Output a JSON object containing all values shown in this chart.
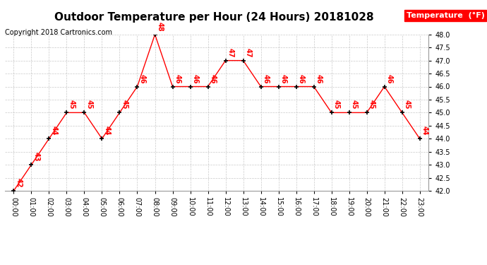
{
  "title": "Outdoor Temperature per Hour (24 Hours) 20181028",
  "copyright": "Copyright 2018 Cartronics.com",
  "legend_label": "Temperature  (°F)",
  "hours": [
    "00:00",
    "01:00",
    "02:00",
    "03:00",
    "04:00",
    "05:00",
    "06:00",
    "07:00",
    "08:00",
    "09:00",
    "10:00",
    "11:00",
    "12:00",
    "13:00",
    "14:00",
    "15:00",
    "16:00",
    "17:00",
    "18:00",
    "19:00",
    "20:00",
    "21:00",
    "22:00",
    "23:00"
  ],
  "temps": [
    42,
    43,
    44,
    45,
    45,
    44,
    45,
    46,
    48,
    46,
    46,
    46,
    47,
    47,
    46,
    46,
    46,
    46,
    45,
    45,
    45,
    46,
    45,
    44
  ],
  "ylim_min": 42.0,
  "ylim_max": 48.0,
  "line_color": "red",
  "marker_color": "black",
  "label_color": "red",
  "bg_color": "white",
  "grid_color": "#bbbbbb",
  "title_fontsize": 11,
  "copyright_fontsize": 7,
  "label_fontsize": 7,
  "tick_fontsize": 7,
  "legend_bg": "red",
  "legend_fg": "white",
  "legend_fontsize": 8
}
